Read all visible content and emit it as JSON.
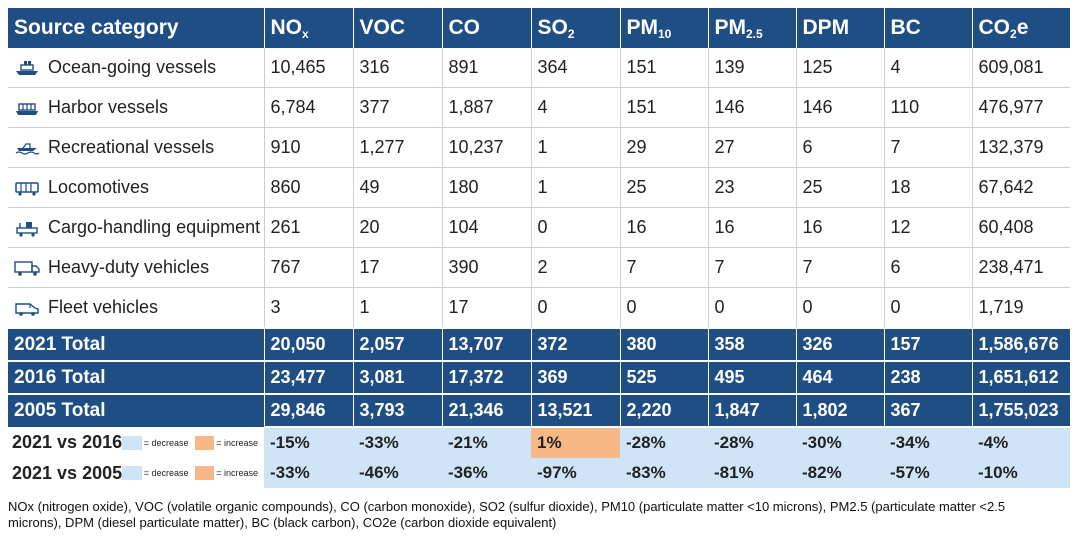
{
  "colors": {
    "header_bg": "#1f4e85",
    "decrease": "#cfe5f7",
    "increase": "#f6b887"
  },
  "header": {
    "source_category": "Source category",
    "columns": [
      {
        "base": "NO",
        "sub": "x"
      },
      {
        "base": "VOC",
        "sub": ""
      },
      {
        "base": "CO",
        "sub": ""
      },
      {
        "base": "SO",
        "sub": "2"
      },
      {
        "base": "PM",
        "sub": "10"
      },
      {
        "base": "PM",
        "sub": "2.5"
      },
      {
        "base": "DPM",
        "sub": ""
      },
      {
        "base": "BC",
        "sub": ""
      },
      {
        "base": "CO",
        "sub": "2",
        "suffix": "e"
      }
    ]
  },
  "rows": [
    {
      "icon": "ship-icon",
      "label": "Ocean-going vessels",
      "values": [
        "10,465",
        "316",
        "891",
        "364",
        "151",
        "139",
        "125",
        "4",
        "609,081"
      ]
    },
    {
      "icon": "ferry-icon",
      "label": "Harbor vessels",
      "values": [
        "6,784",
        "377",
        "1,887",
        "4",
        "151",
        "146",
        "146",
        "110",
        "476,977"
      ]
    },
    {
      "icon": "speedboat-icon",
      "label": "Recreational vessels",
      "values": [
        "910",
        "1,277",
        "10,237",
        "1",
        "29",
        "27",
        "6",
        "7",
        "132,379"
      ]
    },
    {
      "icon": "train-icon",
      "label": "Locomotives",
      "values": [
        "860",
        "49",
        "180",
        "1",
        "25",
        "23",
        "25",
        "18",
        "67,642"
      ]
    },
    {
      "icon": "crane-icon",
      "label": "Cargo-handling equipment",
      "values": [
        "261",
        "20",
        "104",
        "0",
        "16",
        "16",
        "16",
        "12",
        "60,408"
      ]
    },
    {
      "icon": "truck-icon",
      "label": "Heavy-duty vehicles",
      "values": [
        "767",
        "17",
        "390",
        "2",
        "7",
        "7",
        "7",
        "6",
        "238,471"
      ]
    },
    {
      "icon": "van-icon",
      "label": "Fleet vehicles",
      "values": [
        "3",
        "1",
        "17",
        "0",
        "0",
        "0",
        "0",
        "0",
        "1,719"
      ]
    }
  ],
  "totals": [
    {
      "label": "2021 Total",
      "values": [
        "20,050",
        "2,057",
        "13,707",
        "372",
        "380",
        "358",
        "326",
        "157",
        "1,586,676"
      ]
    },
    {
      "label": "2016 Total",
      "values": [
        "23,477",
        "3,081",
        "17,372",
        "369",
        "525",
        "495",
        "464",
        "238",
        "1,651,612"
      ]
    },
    {
      "label": "2005 Total",
      "values": [
        "29,846",
        "3,793",
        "21,346",
        "13,521",
        "2,220",
        "1,847",
        "1,802",
        "367",
        "1,755,023"
      ]
    }
  ],
  "comparisons": [
    {
      "label": "2021 vs 2016",
      "decrease_label": "= decrease",
      "increase_label": "= increase",
      "values": [
        "-15%",
        "-33%",
        "-21%",
        "1%",
        "-28%",
        "-28%",
        "-30%",
        "-34%",
        "-4%"
      ],
      "increase_flags": [
        false,
        false,
        false,
        true,
        false,
        false,
        false,
        false,
        false
      ]
    },
    {
      "label": "2021 vs 2005",
      "decrease_label": "= decrease",
      "increase_label": "= increase",
      "values": [
        "-33%",
        "-46%",
        "-36%",
        "-97%",
        "-83%",
        "-81%",
        "-82%",
        "-57%",
        "-10%"
      ],
      "increase_flags": [
        false,
        false,
        false,
        false,
        false,
        false,
        false,
        false,
        false
      ]
    }
  ],
  "footnote": "NOx (nitrogen oxide), VOC (volatile organic compounds), CO (carbon monoxide), SO2 (sulfur dioxide), PM10 (particulate matter <10 microns), PM2.5 (particulate matter <2.5 microns), DPM (diesel particulate matter), BC (black carbon), CO2e (carbon dioxide equivalent)"
}
